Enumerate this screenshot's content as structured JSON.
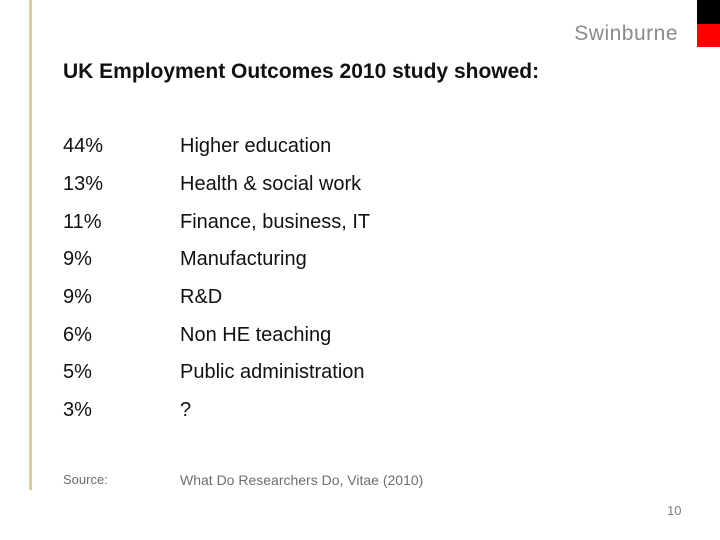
{
  "slide": {
    "brand": "Swinburne",
    "title": "UK Employment Outcomes 2010 study showed:",
    "page_number": "10"
  },
  "outcomes": {
    "rows": [
      {
        "percent": "44%",
        "label": "Higher education"
      },
      {
        "percent": "13%",
        "label": "Health & social work"
      },
      {
        "percent": "11%",
        "label": "Finance, business, IT"
      },
      {
        "percent": "9%",
        "label": "Manufacturing"
      },
      {
        "percent": "9%",
        "label": "R&D"
      },
      {
        "percent": "6%",
        "label": "Non HE teaching"
      },
      {
        "percent": "5%",
        "label": "Public administration"
      },
      {
        "percent": "3%",
        "label": "?"
      }
    ]
  },
  "source": {
    "label": "Source:",
    "text": "What Do Researchers Do, Vitae (2010)"
  },
  "colors": {
    "corner_black": "#000000",
    "corner_red": "#fe0000",
    "brand_gray": "#8a8a8a",
    "muted_gray": "#6e6e6e",
    "page_gray": "#808080",
    "stripe_tan": "#d9cf9e"
  }
}
